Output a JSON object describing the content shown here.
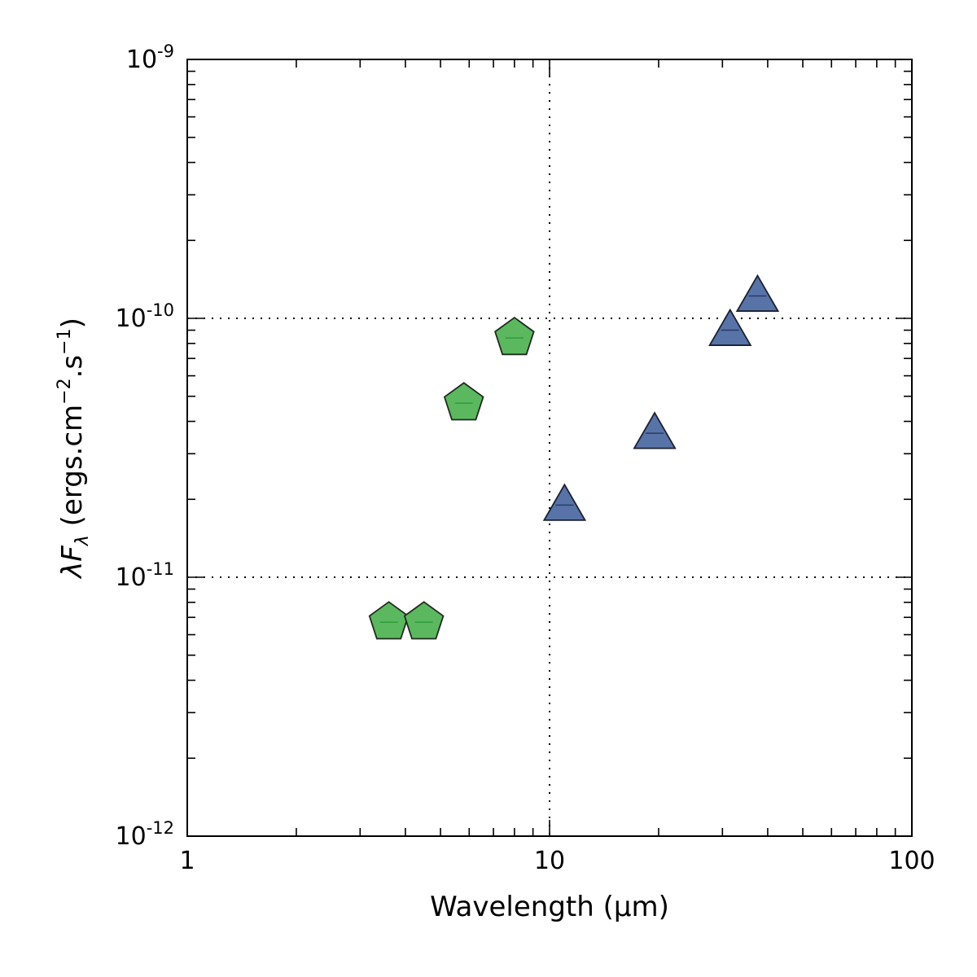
{
  "chart_data": {
    "type": "scatter",
    "title": "",
    "xlabel": "Wavelength (μm)",
    "ylabel_parts": {
      "symbol": "λF",
      "subscript": "λ",
      "unit_open": " (ergs.cm",
      "unit_exp1": "−2",
      "unit_mid": ".s",
      "unit_exp2": "−1",
      "unit_close": ")"
    },
    "x_scale": "log",
    "y_scale": "log",
    "xlim": [
      1,
      100
    ],
    "ylim": [
      1e-12,
      1e-09
    ],
    "x_tick_labels": [
      {
        "value": 1,
        "text": "1"
      },
      {
        "value": 10,
        "text": "10"
      },
      {
        "value": 100,
        "text": "100"
      }
    ],
    "y_tick_labels": [
      {
        "value": 1e-12,
        "base": "10",
        "exp": "-12"
      },
      {
        "value": 1e-11,
        "base": "10",
        "exp": "-11"
      },
      {
        "value": 1e-10,
        "base": "10",
        "exp": "-10"
      },
      {
        "value": 1e-09,
        "base": "10",
        "exp": "-9"
      }
    ],
    "grid": {
      "x": [
        10
      ],
      "y": [
        1e-11,
        1e-10
      ],
      "style": "dotted"
    },
    "legend": "none",
    "series": [
      {
        "marker": "pentagon",
        "color": "#5cb85f",
        "edge_color": "#1f2a1f",
        "points": [
          {
            "x": 3.6,
            "y": 6.7e-12
          },
          {
            "x": 4.5,
            "y": 6.7e-12
          },
          {
            "x": 5.8,
            "y": 4.7e-11
          },
          {
            "x": 8.0,
            "y": 8.4e-11
          }
        ]
      },
      {
        "marker": "triangle",
        "color": "#5873a7",
        "edge_color": "#1a2030",
        "points": [
          {
            "x": 11.0,
            "y": 1.9e-11
          },
          {
            "x": 19.5,
            "y": 3.6e-11
          },
          {
            "x": 31.5,
            "y": 9e-11
          },
          {
            "x": 37.5,
            "y": 1.22e-10
          }
        ]
      }
    ]
  }
}
